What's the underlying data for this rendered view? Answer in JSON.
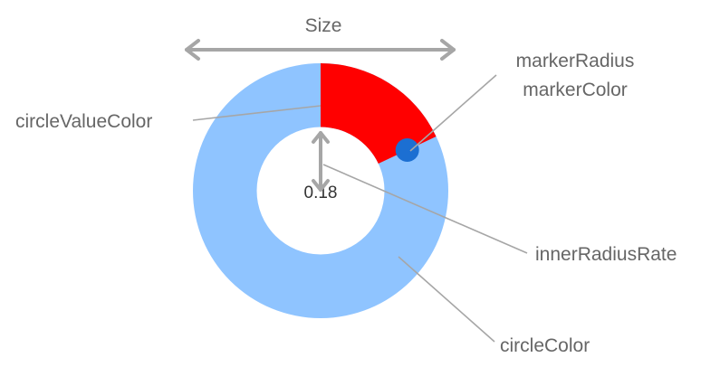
{
  "gauge": {
    "value": 0.18,
    "value_text": "0.18",
    "inner_radius_rate": 0.5,
    "circle_color": "#8fc4ff",
    "circle_value_color": "#ff0000",
    "marker_color": "#1c6fd2"
  },
  "annotations": {
    "size": "Size",
    "marker_radius": "markerRadius",
    "marker_color": "markerColor",
    "circle_value_color": "circleValueColor",
    "inner_radius_rate": "innerRadiusRate",
    "circle_color": "circleColor"
  },
  "colors": {
    "annotation_text": "#666666",
    "leader_lines": "#a6a6a6"
  }
}
